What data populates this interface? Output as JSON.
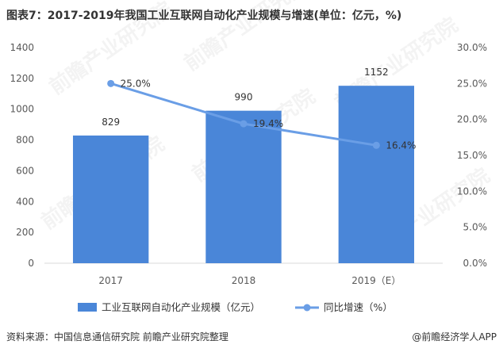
{
  "title": "图表7：2017-2019年我国工业互联网自动化产业规模与增速(单位：亿元，%)",
  "source": "资料来源：中国信息通信研究院 前瞻产业研究院整理",
  "brand": "@前瞻经济学人APP",
  "watermark_text": "前瞻产业研究院",
  "colors": {
    "bar": "#4a86d8",
    "line": "#6a9ee6",
    "axis": "#d9d9d9",
    "bg": "#ffffff"
  },
  "chart_data": {
    "type": "bar+line",
    "categories": [
      "2017",
      "2018",
      "2019（E）"
    ],
    "series": [
      {
        "name": "工业互联网自动化产业规模（亿元）",
        "type": "bar",
        "axis": "left",
        "values": [
          829,
          990,
          1152
        ],
        "labels": [
          "829",
          "990",
          "1152"
        ]
      },
      {
        "name": "同比增速（%）",
        "type": "line",
        "axis": "right",
        "values": [
          25.0,
          19.4,
          16.4
        ],
        "labels": [
          "25.0%",
          "19.4%",
          "16.4%"
        ]
      }
    ],
    "y_left": {
      "min": 0,
      "max": 1400,
      "ticks": [
        "0",
        "200",
        "400",
        "600",
        "800",
        "1000",
        "1200",
        "1400"
      ]
    },
    "y_right": {
      "min": 0,
      "max": 30,
      "ticks": [
        "0.0%",
        "5.0%",
        "10.0%",
        "15.0%",
        "20.0%",
        "25.0%",
        "30.0%"
      ]
    },
    "legend_position": "bottom",
    "grid": false
  }
}
